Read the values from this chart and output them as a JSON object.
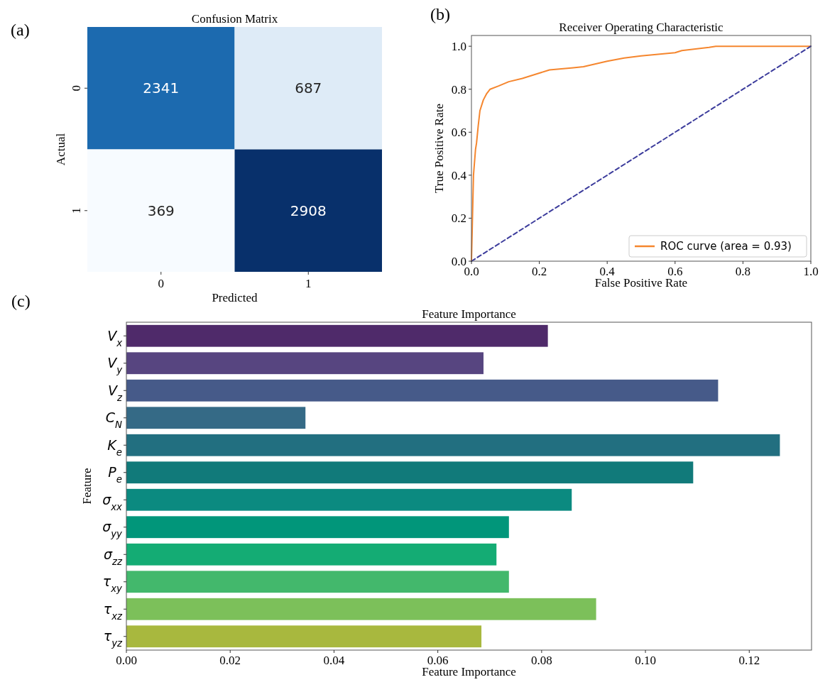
{
  "chart_data": [
    {
      "type": "heatmap",
      "title": "Confusion Matrix",
      "xlabel": "Predicted",
      "ylabel": "Actual",
      "annotations": [
        "(a)"
      ],
      "categories": [
        "0",
        "1"
      ],
      "y_categories": [
        "0",
        "1"
      ],
      "cells": [
        [
          2341,
          687
        ],
        [
          369,
          2908
        ]
      ],
      "data_labels": true
    },
    {
      "type": "line",
      "title": "Receiver Operating Characteristic",
      "xlabel": "False Positive Rate",
      "ylabel": "True Positive Rate",
      "annotations": [
        "(b)"
      ],
      "xlim": [
        0,
        1
      ],
      "ylim": [
        0,
        1.05
      ],
      "xticks": [
        {
          "value": 0,
          "label": "0.0"
        },
        0.2,
        0.4,
        0.6,
        0.8,
        {
          "value": 1,
          "label": "1.0"
        }
      ],
      "yticks": [
        {
          "value": 0,
          "label": "0.0"
        },
        0.2,
        0.4,
        0.6,
        0.8,
        {
          "value": 1,
          "label": "1.0"
        }
      ],
      "legend": "bottom right",
      "grid": false,
      "series": [
        {
          "name": "ROC curve (area = 0.93)",
          "color": "#f5862e",
          "line_style": "solid",
          "x": [
            0,
            0.003,
            0.006,
            0.012,
            0.015,
            0.02,
            0.025,
            0.035,
            0.045,
            0.055,
            0.08,
            0.11,
            0.15,
            0.2,
            0.23,
            0.3,
            0.33,
            0.4,
            0.45,
            0.5,
            0.6,
            0.62,
            0.7,
            0.72,
            1
          ],
          "values": [
            0,
            0.2,
            0.4,
            0.52,
            0.55,
            0.63,
            0.7,
            0.75,
            0.78,
            0.8,
            0.815,
            0.835,
            0.85,
            0.875,
            0.89,
            0.9,
            0.905,
            0.93,
            0.945,
            0.955,
            0.97,
            0.98,
            0.995,
            1,
            1
          ]
        },
        {
          "color": "#3c3c9c",
          "line_style": "dashed",
          "x": [
            0,
            1
          ],
          "values": [
            0,
            1
          ]
        }
      ]
    },
    {
      "type": "bar",
      "orientation": "horizontal",
      "title": "Feature Importance",
      "xlabel": "Feature Importance",
      "ylabel": "Feature",
      "annotations": [
        "(c)"
      ],
      "categories": [
        "V$_{x}$",
        "V$_{y}$",
        "V$_{z}$",
        "C$_{N}$",
        "K$_{e}$",
        "P$_{e}$",
        "σ$_{xx}$",
        "σ$_{yy}$",
        "σ$_{zz}$",
        "τ$_{xy}$",
        "τ$_{xz}$",
        "τ$_{yz}$"
      ],
      "values": [
        0.0812,
        0.0688,
        0.114,
        0.0345,
        0.1259,
        0.1092,
        0.0858,
        0.0737,
        0.0713,
        0.0737,
        0.0905,
        0.0684
      ],
      "colors": [
        "#4f2a6a",
        "#574580",
        "#465a89",
        "#356a86",
        "#226f80",
        "#117a7a",
        "#0b8a80",
        "#01967a",
        "#14ac74",
        "#43b86c",
        "#7cc05a",
        "#a8b83e"
      ],
      "xlim": [
        0,
        0.132
      ],
      "xticks": [
        {
          "value": 0,
          "label": "0.00"
        },
        {
          "value": 0.02,
          "label": "0.02"
        },
        {
          "value": 0.04,
          "label": "0.04"
        },
        {
          "value": 0.06,
          "label": "0.06"
        },
        {
          "value": 0.08,
          "label": "0.08"
        },
        {
          "value": 0.1,
          "label": "0.10"
        },
        {
          "value": 0.12,
          "label": "0.12"
        }
      ],
      "grid": false
    }
  ]
}
